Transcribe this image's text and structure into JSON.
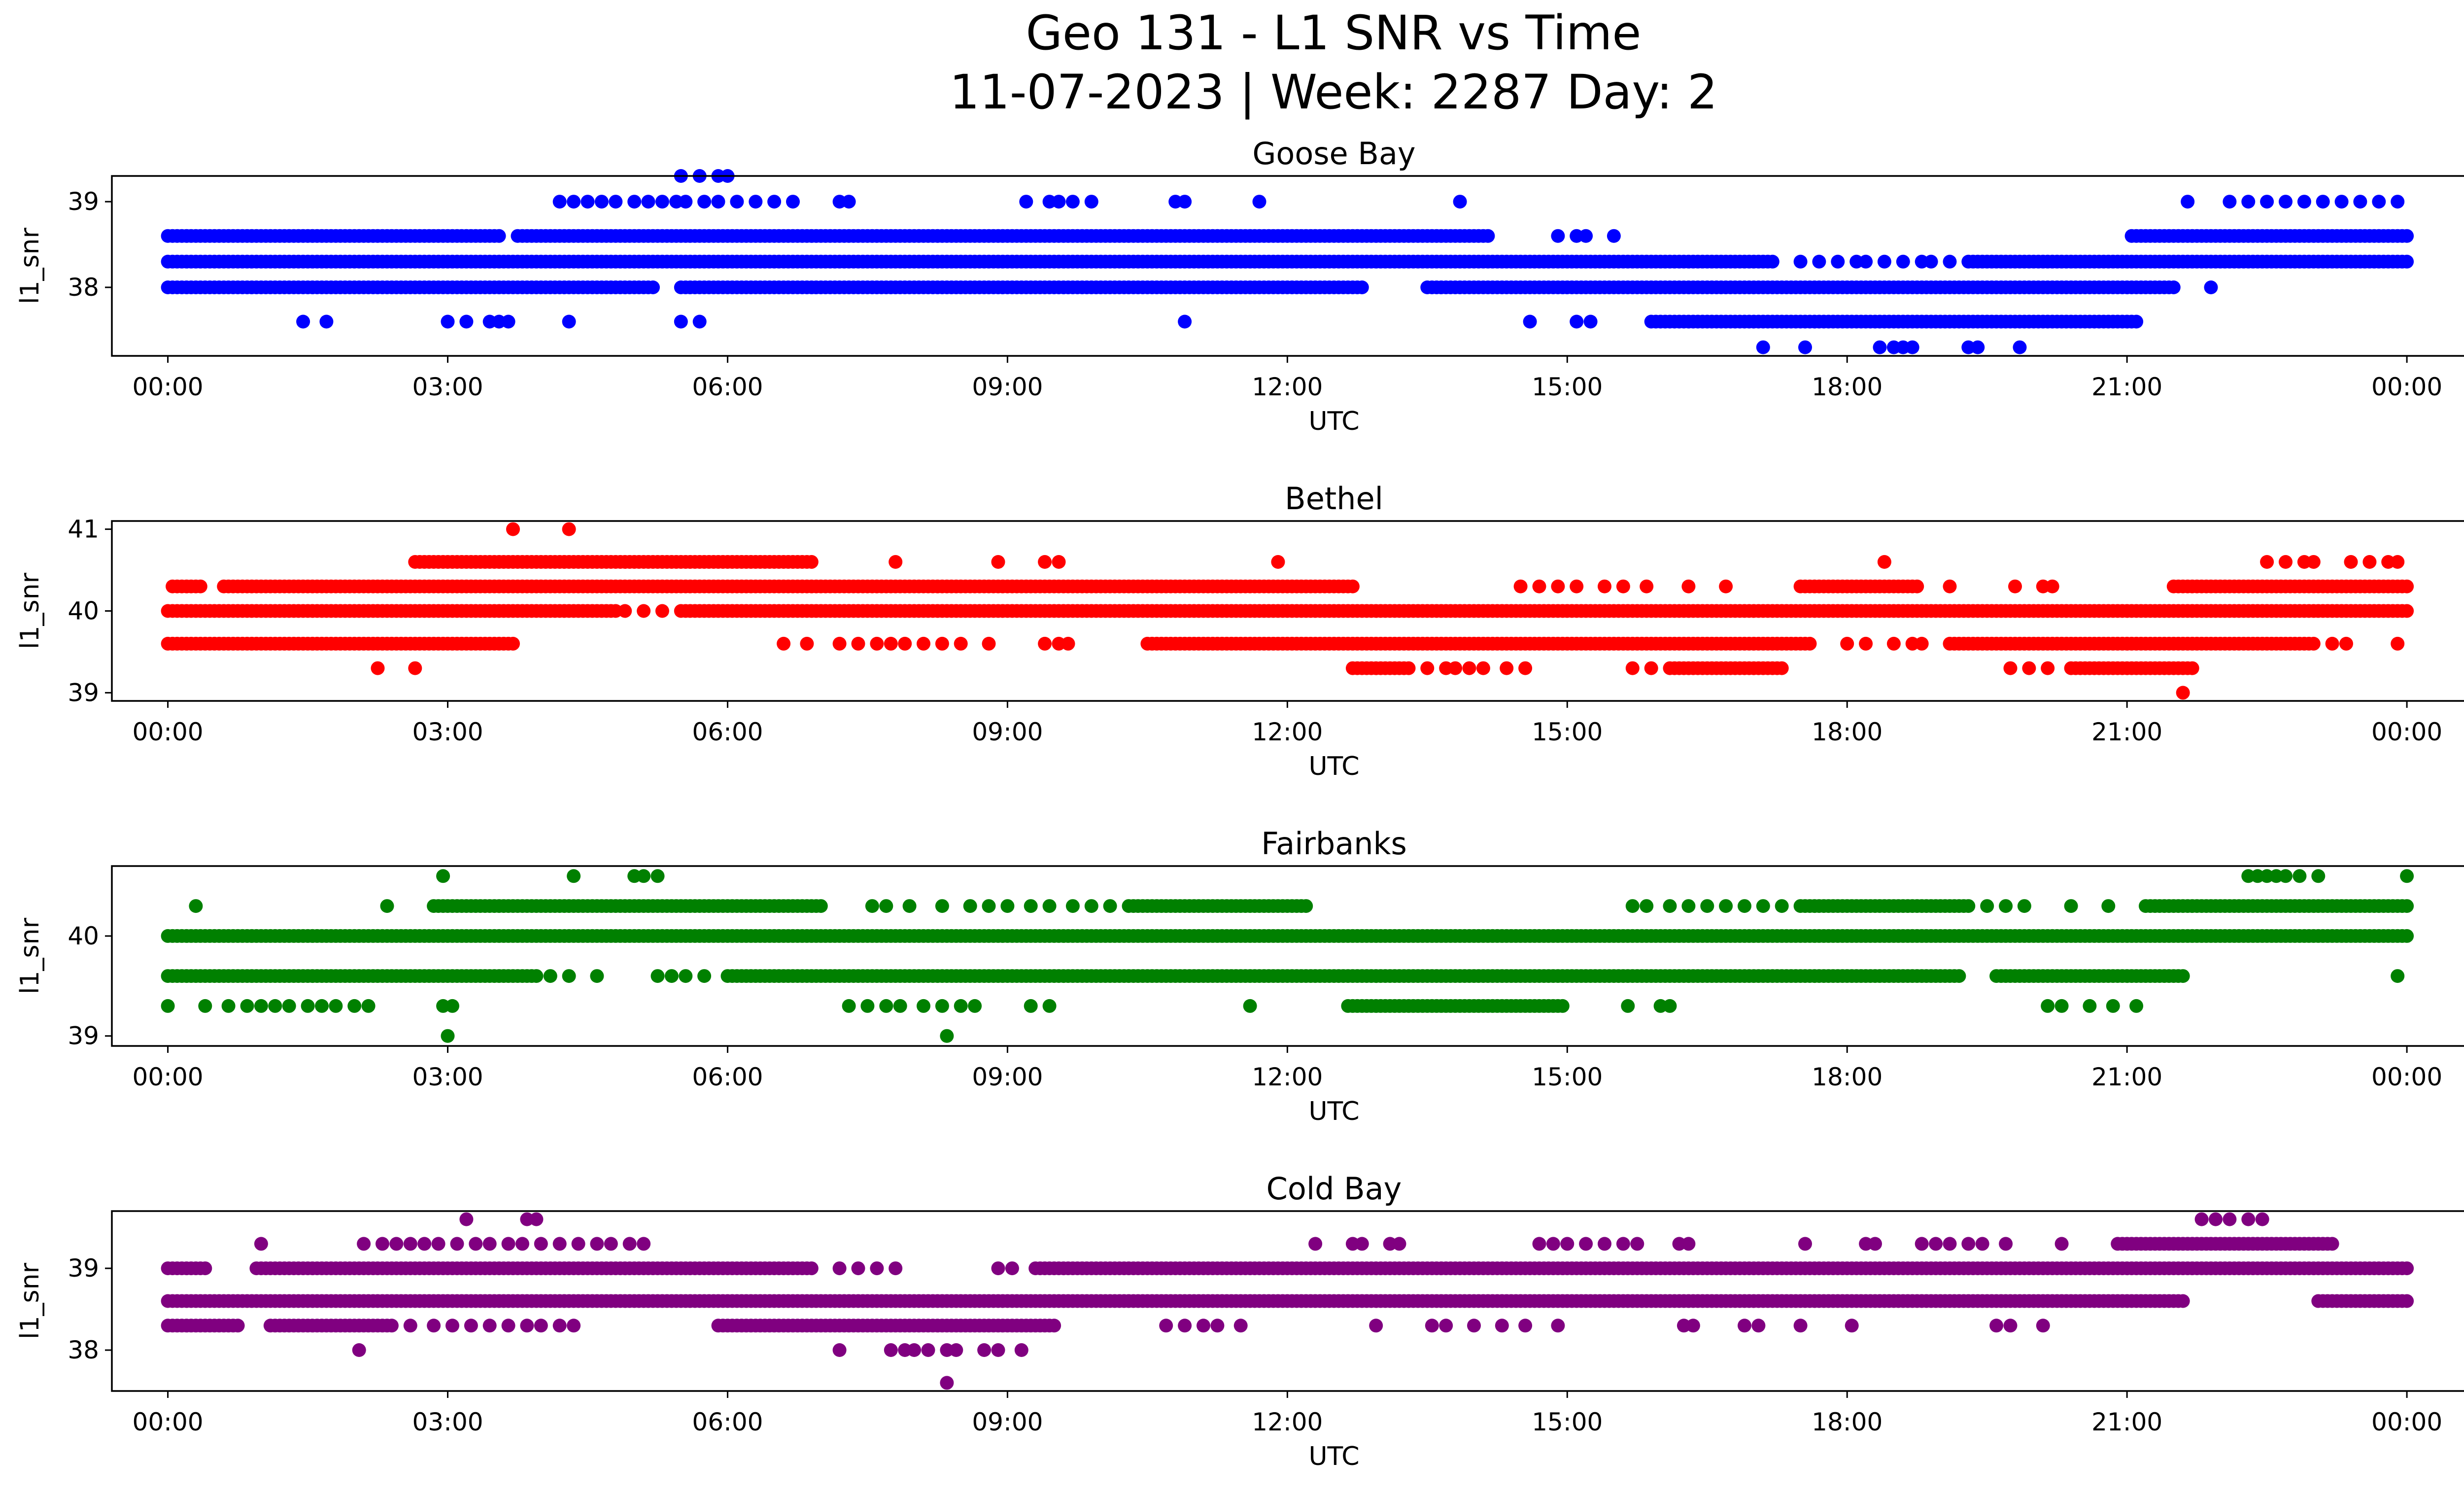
{
  "figure": {
    "title_line1": "Geo 131 - L1 SNR vs Time",
    "title_line2": "11-07-2023 | Week: 2287 Day: 2"
  },
  "chart_data": [
    {
      "type": "scatter",
      "title": "Goose Bay",
      "xlabel": "UTC",
      "ylabel": "l1_snr",
      "color": "#0000ff",
      "x_unit": "hours UTC",
      "xlim": [
        -0.6,
        25.6
      ],
      "x_tick_values": [
        0,
        3,
        6,
        9,
        12,
        15,
        18,
        21,
        24
      ],
      "x_tick_labels": [
        "00:00",
        "03:00",
        "06:00",
        "09:00",
        "12:00",
        "15:00",
        "18:00",
        "21:00",
        "00:00"
      ],
      "ylim": [
        37.2,
        39.3
      ],
      "yticks": [
        38,
        39
      ],
      "levels": [
        {
          "y": 38.6,
          "segments": [
            [
              0.0,
              3.55
            ],
            [
              3.75,
              14.15
            ],
            [
              21.05,
              24.0
            ]
          ]
        },
        {
          "y": 38.3,
          "segments": [
            [
              0.0,
              17.2
            ],
            [
              19.3,
              24.0
            ]
          ]
        },
        {
          "y": 38.0,
          "segments": [
            [
              0.0,
              5.2
            ],
            [
              5.5,
              12.8
            ],
            [
              13.5,
              21.5
            ]
          ]
        },
        {
          "y": 37.6,
          "segments": [
            [
              15.9,
              21.1
            ]
          ]
        }
      ],
      "points": [
        {
          "y": 39.3,
          "x": [
            5.5,
            5.7,
            5.9,
            6.0
          ]
        },
        {
          "y": 39.0,
          "x": [
            4.2,
            4.35,
            4.5,
            4.65,
            4.8,
            5.0,
            5.15,
            5.3,
            5.45,
            5.55,
            5.75,
            5.9,
            6.1,
            6.3,
            6.5,
            6.7,
            7.2,
            7.3,
            9.2,
            9.45,
            9.55,
            9.7,
            9.9,
            10.8,
            10.9,
            11.7,
            13.85,
            21.65,
            22.1,
            22.3,
            22.5,
            22.7,
            22.9,
            23.1,
            23.3,
            23.5,
            23.7,
            23.9
          ]
        },
        {
          "y": 38.6,
          "x": [
            14.9,
            15.1,
            15.2,
            15.5
          ]
        },
        {
          "y": 38.3,
          "x": [
            17.5,
            17.7,
            17.9,
            18.1,
            18.2,
            18.4,
            18.6,
            18.8,
            18.9,
            19.1
          ]
        },
        {
          "y": 38.0,
          "x": [
            21.9
          ]
        },
        {
          "y": 37.6,
          "x": [
            1.45,
            1.7,
            3.0,
            3.2,
            3.45,
            3.55,
            3.65,
            4.3,
            5.5,
            5.7,
            10.9,
            14.6,
            15.1,
            15.25
          ]
        },
        {
          "y": 37.3,
          "x": [
            17.1,
            17.55,
            18.35,
            18.5,
            18.6,
            18.7,
            19.3,
            19.4,
            19.85
          ]
        }
      ]
    },
    {
      "type": "scatter",
      "title": "Bethel",
      "xlabel": "UTC",
      "ylabel": "l1_snr",
      "color": "#ff0000",
      "x_unit": "hours UTC",
      "xlim": [
        -0.6,
        25.6
      ],
      "x_tick_values": [
        0,
        3,
        6,
        9,
        12,
        15,
        18,
        21,
        24
      ],
      "x_tick_labels": [
        "00:00",
        "03:00",
        "06:00",
        "09:00",
        "12:00",
        "15:00",
        "18:00",
        "21:00",
        "00:00"
      ],
      "ylim": [
        38.9,
        41.1
      ],
      "yticks": [
        39,
        40,
        41
      ],
      "levels": [
        {
          "y": 40.6,
          "segments": [
            [
              2.65,
              6.9
            ]
          ]
        },
        {
          "y": 40.3,
          "segments": [
            [
              0.05,
              0.35
            ],
            [
              0.6,
              12.7
            ],
            [
              17.5,
              18.75
            ],
            [
              21.5,
              24.0
            ]
          ]
        },
        {
          "y": 40.0,
          "segments": [
            [
              0.0,
              4.8
            ],
            [
              5.5,
              24.0
            ]
          ]
        },
        {
          "y": 39.6,
          "segments": [
            [
              0.0,
              3.7
            ],
            [
              10.5,
              17.6
            ],
            [
              19.1,
              23.0
            ]
          ]
        },
        {
          "y": 39.3,
          "segments": [
            [
              12.7,
              13.3
            ],
            [
              16.1,
              17.3
            ],
            [
              20.4,
              21.7
            ]
          ]
        }
      ],
      "points": [
        {
          "y": 41.0,
          "x": [
            3.7,
            4.3
          ]
        },
        {
          "y": 40.6,
          "x": [
            7.8,
            8.9,
            9.4,
            9.55,
            11.9,
            18.4,
            22.5,
            22.7,
            22.9,
            23.0,
            23.4,
            23.6,
            23.8,
            23.9
          ]
        },
        {
          "y": 40.3,
          "x": [
            14.5,
            14.7,
            14.9,
            15.1,
            15.4,
            15.6,
            15.85,
            16.3,
            16.7,
            19.1,
            19.8,
            20.1,
            20.2
          ]
        },
        {
          "y": 40.0,
          "x": [
            4.9,
            5.1,
            5.3
          ]
        },
        {
          "y": 39.6,
          "x": [
            6.6,
            6.85,
            7.2,
            7.4,
            7.6,
            7.75,
            7.9,
            8.1,
            8.3,
            8.5,
            8.8,
            9.4,
            9.55,
            9.65,
            18.0,
            18.2,
            18.5,
            18.7,
            18.8,
            23.2,
            23.35,
            23.9
          ]
        },
        {
          "y": 39.3,
          "x": [
            2.25,
            2.65,
            13.5,
            13.7,
            13.8,
            13.95,
            14.1,
            14.35,
            14.55,
            15.7,
            15.9,
            19.75,
            19.95,
            20.15
          ]
        },
        {
          "y": 39.0,
          "x": [
            21.6
          ]
        }
      ]
    },
    {
      "type": "scatter",
      "title": "Fairbanks",
      "xlabel": "UTC",
      "ylabel": "l1_snr",
      "color": "#008000",
      "x_unit": "hours UTC",
      "xlim": [
        -0.6,
        25.6
      ],
      "x_tick_values": [
        0,
        3,
        6,
        9,
        12,
        15,
        18,
        21,
        24
      ],
      "x_tick_labels": [
        "00:00",
        "03:00",
        "06:00",
        "09:00",
        "12:00",
        "15:00",
        "18:00",
        "21:00",
        "00:00"
      ],
      "ylim": [
        38.9,
        40.7
      ],
      "yticks": [
        39,
        40
      ],
      "levels": [
        {
          "y": 40.3,
          "segments": [
            [
              2.85,
              7.0
            ],
            [
              10.3,
              12.2
            ],
            [
              17.5,
              19.3
            ],
            [
              21.2,
              24.0
            ]
          ]
        },
        {
          "y": 40.0,
          "segments": [
            [
              0.0,
              24.0
            ]
          ]
        },
        {
          "y": 39.6,
          "segments": [
            [
              0.0,
              3.95
            ],
            [
              6.0,
              19.2
            ],
            [
              19.6,
              21.6
            ]
          ]
        },
        {
          "y": 39.3,
          "segments": [
            [
              12.65,
              14.95
            ]
          ]
        }
      ],
      "points": [
        {
          "y": 40.6,
          "x": [
            2.95,
            4.35,
            5.0,
            5.1,
            5.25,
            22.3,
            22.4,
            22.5,
            22.6,
            22.7,
            22.85,
            23.05,
            24.0
          ]
        },
        {
          "y": 40.3,
          "x": [
            0.3,
            2.35,
            7.55,
            7.7,
            7.95,
            8.3,
            8.6,
            8.8,
            9.0,
            9.25,
            9.45,
            9.7,
            9.9,
            10.1,
            15.7,
            15.85,
            16.1,
            16.3,
            16.5,
            16.7,
            16.9,
            17.1,
            17.3,
            19.5,
            19.7,
            19.9,
            20.4,
            20.8
          ]
        },
        {
          "y": 39.6,
          "x": [
            4.1,
            4.3,
            4.6,
            5.25,
            5.4,
            5.55,
            5.75,
            23.9
          ]
        },
        {
          "y": 39.3,
          "x": [
            0.0,
            0.4,
            0.65,
            0.85,
            1.0,
            1.15,
            1.3,
            1.5,
            1.65,
            1.8,
            2.0,
            2.15,
            2.95,
            3.05,
            7.3,
            7.5,
            7.7,
            7.85,
            8.1,
            8.3,
            8.5,
            8.65,
            9.25,
            9.45,
            11.6,
            15.65,
            16.0,
            16.1,
            20.15,
            20.3,
            20.6,
            20.85,
            21.1
          ]
        },
        {
          "y": 39.0,
          "x": [
            3.0,
            8.35
          ]
        }
      ]
    },
    {
      "type": "scatter",
      "title": "Cold Bay",
      "xlabel": "UTC",
      "ylabel": "l1_snr",
      "color": "#800080",
      "x_unit": "hours UTC",
      "xlim": [
        -0.6,
        25.6
      ],
      "x_tick_values": [
        0,
        3,
        6,
        9,
        12,
        15,
        18,
        21,
        24
      ],
      "x_tick_labels": [
        "00:00",
        "03:00",
        "06:00",
        "09:00",
        "12:00",
        "15:00",
        "18:00",
        "21:00",
        "00:00"
      ],
      "ylim": [
        37.5,
        39.7
      ],
      "yticks": [
        38,
        39
      ],
      "levels": [
        {
          "y": 39.3,
          "segments": [
            [
              20.9,
              23.2
            ]
          ]
        },
        {
          "y": 39.0,
          "segments": [
            [
              0.0,
              0.4
            ],
            [
              0.95,
              6.9
            ],
            [
              9.3,
              24.0
            ]
          ]
        },
        {
          "y": 38.6,
          "segments": [
            [
              0.0,
              21.6
            ],
            [
              23.05,
              24.0
            ]
          ]
        },
        {
          "y": 38.3,
          "segments": [
            [
              0.0,
              0.75
            ],
            [
              1.1,
              2.4
            ],
            [
              5.9,
              9.5
            ]
          ]
        }
      ],
      "points": [
        {
          "y": 39.6,
          "x": [
            3.2,
            3.85,
            3.95,
            21.8,
            21.95,
            22.1,
            22.3,
            22.45
          ]
        },
        {
          "y": 39.3,
          "x": [
            1.0,
            2.1,
            2.3,
            2.45,
            2.6,
            2.75,
            2.9,
            3.1,
            3.3,
            3.45,
            3.65,
            3.8,
            4.0,
            4.2,
            4.4,
            4.6,
            4.75,
            4.95,
            5.1,
            12.3,
            12.7,
            12.8,
            13.1,
            13.2,
            14.7,
            14.85,
            15.0,
            15.2,
            15.4,
            15.6,
            15.75,
            16.2,
            16.3,
            17.55,
            18.2,
            18.3,
            18.8,
            18.95,
            19.1,
            19.3,
            19.45,
            19.7,
            20.3
          ]
        },
        {
          "y": 39.0,
          "x": [
            7.2,
            7.4,
            7.6,
            7.8,
            8.9,
            9.05
          ]
        },
        {
          "y": 38.3,
          "x": [
            2.6,
            2.85,
            3.05,
            3.25,
            3.45,
            3.65,
            3.85,
            4.0,
            4.2,
            4.35,
            10.7,
            10.9,
            11.1,
            11.25,
            11.5,
            12.95,
            13.55,
            13.7,
            14.0,
            14.3,
            14.55,
            14.9,
            16.25,
            16.35,
            16.9,
            17.05,
            17.5,
            18.05,
            19.6,
            19.75,
            20.1
          ]
        },
        {
          "y": 38.0,
          "x": [
            2.05,
            7.2,
            7.75,
            7.9,
            8.0,
            8.15,
            8.35,
            8.45,
            8.75,
            8.9,
            9.15
          ]
        },
        {
          "y": 37.6,
          "x": [
            8.35
          ]
        }
      ]
    }
  ]
}
